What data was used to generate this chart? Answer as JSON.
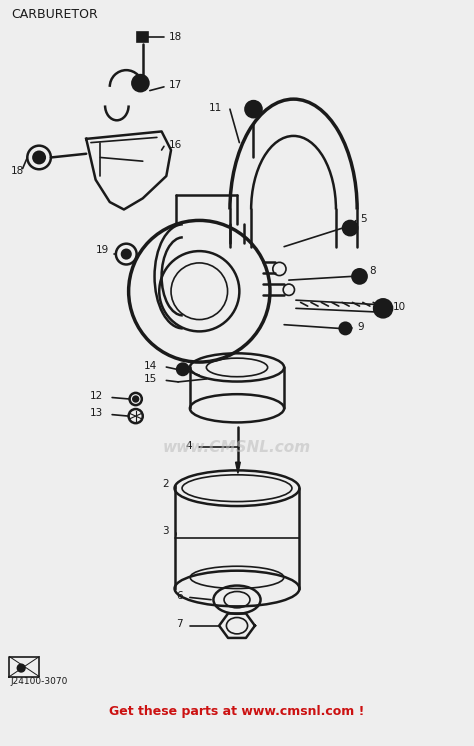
{
  "title": "CARBURETOR",
  "bg_color": "#eeeeee",
  "line_color": "#1a1a1a",
  "label_color": "#1a1a1a",
  "watermark_color": "#bbbbbb",
  "footer_text": "Get these parts at www.cmsnl.com !",
  "footer_color": "#cc1111",
  "part_id": "J24100-3070",
  "website": "www.CMSNL.com",
  "figsize": [
    4.74,
    7.46
  ],
  "dpi": 100,
  "title_fontsize": 9,
  "label_fontsize": 7.5
}
